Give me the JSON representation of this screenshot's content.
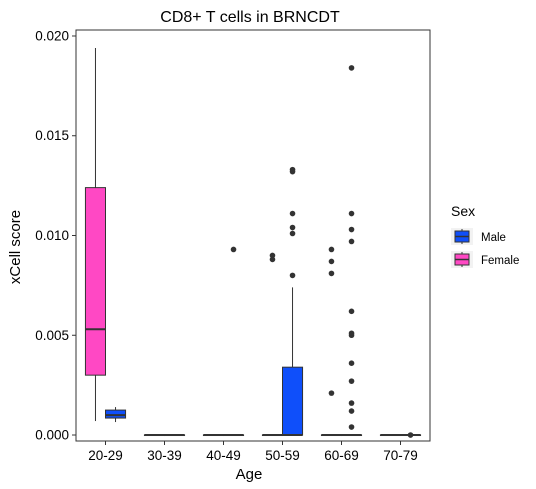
{
  "chart_data": {
    "type": "box",
    "title": "CD8+ T cells in BRNCDT",
    "xlabel": "Age",
    "ylabel": "xCell score",
    "categories": [
      "20-29",
      "30-39",
      "40-49",
      "50-59",
      "60-69",
      "70-79"
    ],
    "y_ticks": [
      "0.000",
      "0.005",
      "0.010",
      "0.015",
      "0.020"
    ],
    "ylim": [
      -0.0003,
      0.0203
    ],
    "legend": {
      "title": "Sex",
      "position": "right",
      "entries": [
        {
          "name": "Male",
          "color": "#0F4FFA"
        },
        {
          "name": "Female",
          "color": "#FF48C4"
        }
      ]
    },
    "series": [
      {
        "name": "Male",
        "color": "#0F4FFA",
        "boxes": [
          {
            "category": "20-29",
            "q1": 0.00085,
            "median": 0.001,
            "q3": 0.00125,
            "whisker_low": 0.00065,
            "whisker_high": 0.0014,
            "outliers": []
          },
          {
            "category": "30-39",
            "q1": 0,
            "median": 0,
            "q3": 0,
            "whisker_low": 0,
            "whisker_high": 0,
            "outliers": []
          },
          {
            "category": "40-49",
            "q1": 0,
            "median": 0,
            "q3": 0,
            "whisker_low": 0,
            "whisker_high": 0,
            "outliers": [
              0.0093
            ]
          },
          {
            "category": "50-59",
            "q1": 0,
            "median": 0,
            "q3": 0.0034,
            "whisker_low": 0,
            "whisker_high": 0.0074,
            "outliers": [
              0.008,
              0.0101,
              0.0104,
              0.0111,
              0.0132,
              0.0133
            ]
          },
          {
            "category": "60-69",
            "q1": 0,
            "median": 0,
            "q3": 0,
            "whisker_low": 0,
            "whisker_high": 0,
            "outliers": [
              0.0004,
              0.0012,
              0.0016,
              0.0027,
              0.0036,
              0.005,
              0.0051,
              0.0062,
              0.0097,
              0.0103,
              0.0111,
              0.0184
            ]
          },
          {
            "category": "70-79",
            "q1": 0,
            "median": 0,
            "q3": 0,
            "whisker_low": 0,
            "whisker_high": 0,
            "outliers": [
              0.0
            ]
          }
        ]
      },
      {
        "name": "Female",
        "color": "#FF48C4",
        "boxes": [
          {
            "category": "20-29",
            "q1": 0.003,
            "median": 0.0053,
            "q3": 0.0124,
            "whisker_low": 0.0007,
            "whisker_high": 0.0194,
            "outliers": []
          },
          {
            "category": "30-39",
            "q1": 0,
            "median": 0,
            "q3": 0,
            "whisker_low": 0,
            "whisker_high": 0,
            "outliers": []
          },
          {
            "category": "40-49",
            "q1": 0,
            "median": 0,
            "q3": 0,
            "whisker_low": 0,
            "whisker_high": 0,
            "outliers": []
          },
          {
            "category": "50-59",
            "q1": 0,
            "median": 0,
            "q3": 0,
            "whisker_low": 0,
            "whisker_high": 0,
            "outliers": [
              0.0088,
              0.009
            ]
          },
          {
            "category": "60-69",
            "q1": 0,
            "median": 0,
            "q3": 0,
            "whisker_low": 0,
            "whisker_high": 0,
            "outliers": [
              0.0021,
              0.0081,
              0.0087,
              0.0093
            ]
          },
          {
            "category": "70-79",
            "q1": 0,
            "median": 0,
            "q3": 0,
            "whisker_low": 0,
            "whisker_high": 0,
            "outliers": []
          }
        ]
      }
    ]
  }
}
